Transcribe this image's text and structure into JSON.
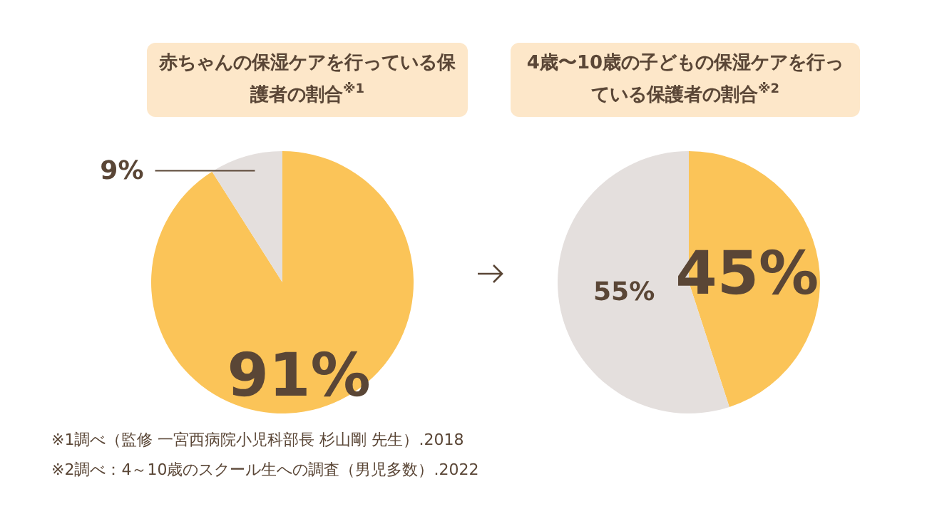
{
  "chart_data": [
    {
      "type": "pie",
      "title": "赤ちゃんの保湿ケアを行っている保護者の割合$^{※1}$",
      "categories": [
        null,
        null
      ],
      "values": [
        91,
        9
      ],
      "colors": [
        "#fbc458",
        "#e4dfdd"
      ],
      "value_labels": [
        "91%",
        "9%"
      ],
      "annotations": [
        "※1調べ（監修 一宮西病院小児科部長 杉山剛 先生）.2018"
      ]
    },
    {
      "type": "pie",
      "title": "4歳〜10歳の子どもの保湿ケアを行っている保護者の割合$^{※2}$",
      "categories": [
        null,
        null
      ],
      "values": [
        45,
        55
      ],
      "colors": [
        "#fbc458",
        "#e4dfdd"
      ],
      "value_labels": [
        "45%",
        "55%"
      ],
      "annotations": [
        "※2調べ：4～10歳のスクール生への調査（男児多数）.2022"
      ]
    }
  ]
}
